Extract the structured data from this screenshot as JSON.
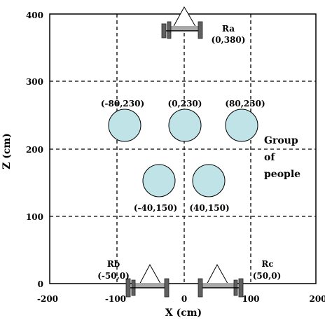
{
  "axes": {
    "x_label": "X (cm)",
    "y_label": "Z (cm)",
    "x_ticks": [
      "-200",
      "-100",
      "0",
      "100",
      "200"
    ],
    "y_ticks": [
      "0",
      "100",
      "200",
      "300",
      "400"
    ],
    "x_range": [
      -200,
      200
    ],
    "z_range": [
      0,
      400
    ]
  },
  "people": [
    {
      "label": "(-80,230)",
      "x": -80,
      "z": 230
    },
    {
      "label": "(0,230)",
      "x": 0,
      "z": 230
    },
    {
      "label": "(80,230)",
      "x": 80,
      "z": 230
    },
    {
      "label": "(-40,150)",
      "x": -40,
      "z": 150
    },
    {
      "label": "(40,150)",
      "x": 40,
      "z": 150
    }
  ],
  "robots": [
    {
      "name": "Ra",
      "coords": "(0,380)",
      "x": 0,
      "z": 380
    },
    {
      "name": "Rb",
      "coords": "(-50,0)",
      "x": -50,
      "z": 0
    },
    {
      "name": "Rc",
      "coords": "(50,0)",
      "x": 50,
      "z": 0
    }
  ],
  "group_label": [
    "Group",
    "of",
    "people"
  ],
  "colors": {
    "person_fill": "#bfe3e6",
    "robot_body": "#606060",
    "robot_bar": "#a8a8a8"
  }
}
